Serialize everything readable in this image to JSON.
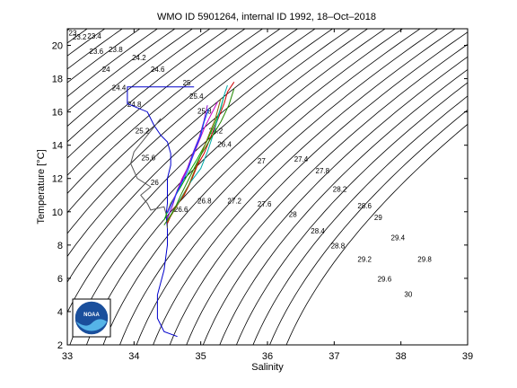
{
  "chart_data": {
    "type": "line",
    "title": "WMO ID 5901264, internal ID 1992, 18–Oct–2018",
    "xlabel": "Salinity",
    "ylabel": "Temperature [°C]",
    "xlim": [
      33,
      39
    ],
    "ylim": [
      2,
      21
    ],
    "xticks": [
      33,
      34,
      35,
      36,
      37,
      38,
      39
    ],
    "yticks": [
      2,
      4,
      6,
      8,
      10,
      12,
      14,
      16,
      18,
      20
    ],
    "grid": false,
    "logo_text": "NOAA",
    "density_labels": [
      {
        "text": "23",
        "s": 33.02,
        "t": 20.6
      },
      {
        "text": "23.2",
        "s": 33.08,
        "t": 20.35
      },
      {
        "text": "23.4",
        "s": 33.3,
        "t": 20.4
      },
      {
        "text": "23.6",
        "s": 33.33,
        "t": 19.5
      },
      {
        "text": "23.8",
        "s": 33.62,
        "t": 19.6
      },
      {
        "text": "24",
        "s": 33.52,
        "t": 18.4
      },
      {
        "text": "24.2",
        "s": 33.97,
        "t": 19.1
      },
      {
        "text": "24.4",
        "s": 33.67,
        "t": 17.3
      },
      {
        "text": "24.6",
        "s": 34.25,
        "t": 18.4
      },
      {
        "text": "24.8",
        "s": 33.9,
        "t": 16.3
      },
      {
        "text": "25",
        "s": 34.73,
        "t": 17.6
      },
      {
        "text": "25.2",
        "s": 34.02,
        "t": 14.7
      },
      {
        "text": "25.4",
        "s": 34.83,
        "t": 16.8
      },
      {
        "text": "25.6",
        "s": 34.11,
        "t": 13.1
      },
      {
        "text": "25.8",
        "s": 34.95,
        "t": 15.9
      },
      {
        "text": "26",
        "s": 34.25,
        "t": 11.6
      },
      {
        "text": "26.2",
        "s": 35.12,
        "t": 14.7
      },
      {
        "text": "26.4",
        "s": 35.25,
        "t": 13.9
      },
      {
        "text": "26.6",
        "s": 34.6,
        "t": 10.0
      },
      {
        "text": "26.8",
        "s": 34.95,
        "t": 10.5
      },
      {
        "text": "27",
        "s": 35.85,
        "t": 12.9
      },
      {
        "text": "27.2",
        "s": 35.4,
        "t": 10.5
      },
      {
        "text": "27.4",
        "s": 36.4,
        "t": 13.0
      },
      {
        "text": "27.6",
        "s": 35.85,
        "t": 10.3
      },
      {
        "text": "27.8",
        "s": 36.72,
        "t": 12.3
      },
      {
        "text": "28",
        "s": 36.32,
        "t": 9.7
      },
      {
        "text": "28.2",
        "s": 36.98,
        "t": 11.2
      },
      {
        "text": "28.4",
        "s": 36.65,
        "t": 8.7
      },
      {
        "text": "28.6",
        "s": 37.35,
        "t": 10.2
      },
      {
        "text": "28.8",
        "s": 36.95,
        "t": 7.8
      },
      {
        "text": "29",
        "s": 37.6,
        "t": 9.5
      },
      {
        "text": "29.2",
        "s": 37.35,
        "t": 7.0
      },
      {
        "text": "29.4",
        "s": 37.85,
        "t": 8.3
      },
      {
        "text": "29.6",
        "s": 37.65,
        "t": 5.8
      },
      {
        "text": "29.8",
        "s": 38.25,
        "t": 7.0
      },
      {
        "text": "30",
        "s": 38.05,
        "t": 4.9
      }
    ],
    "series": [
      {
        "color": "#0000cc",
        "points": [
          [
            34.9,
            17.5
          ],
          [
            34.5,
            17.5
          ],
          [
            34.2,
            17.5
          ],
          [
            33.9,
            17.5
          ],
          [
            33.9,
            16.5
          ],
          [
            34.2,
            16.0
          ],
          [
            34.3,
            15.2
          ],
          [
            34.4,
            14.6
          ],
          [
            34.5,
            14.2
          ],
          [
            34.55,
            13.5
          ],
          [
            34.55,
            12.8
          ],
          [
            34.5,
            12.0
          ],
          [
            34.5,
            11.2
          ],
          [
            34.5,
            10.5
          ],
          [
            34.48,
            9.8
          ],
          [
            34.5,
            9.0
          ],
          [
            34.5,
            8.0
          ],
          [
            34.45,
            6.5
          ],
          [
            34.35,
            5.0
          ],
          [
            34.35,
            3.6
          ],
          [
            34.45,
            2.8
          ],
          [
            34.65,
            2.5
          ]
        ]
      },
      {
        "color": "#555555",
        "points": [
          [
            34.4,
            15.6
          ],
          [
            34.2,
            14.6
          ],
          [
            34.0,
            13.6
          ],
          [
            33.95,
            12.9
          ],
          [
            34.05,
            12.0
          ],
          [
            34.25,
            11.5
          ],
          [
            34.1,
            11.0
          ],
          [
            34.2,
            10.5
          ],
          [
            34.25,
            10.1
          ],
          [
            34.45,
            10.3
          ],
          [
            34.5,
            9.6
          ],
          [
            34.5,
            9.0
          ]
        ]
      },
      {
        "color": "#cc0000",
        "points": [
          [
            34.5,
            9.3
          ],
          [
            34.6,
            10.2
          ],
          [
            34.75,
            11.0
          ],
          [
            34.85,
            11.8
          ],
          [
            34.95,
            12.8
          ],
          [
            35.05,
            13.5
          ],
          [
            35.15,
            14.5
          ],
          [
            35.25,
            15.5
          ],
          [
            35.35,
            16.5
          ],
          [
            35.4,
            17.2
          ],
          [
            35.5,
            17.8
          ]
        ]
      },
      {
        "color": "#00aa00",
        "points": [
          [
            34.45,
            9.5
          ],
          [
            34.55,
            10.5
          ],
          [
            34.7,
            11.5
          ],
          [
            34.8,
            12.2
          ],
          [
            34.95,
            13.2
          ],
          [
            35.1,
            14.3
          ],
          [
            35.2,
            15.2
          ],
          [
            35.3,
            16.2
          ],
          [
            35.35,
            17.0
          ]
        ]
      },
      {
        "color": "#cc00cc",
        "points": [
          [
            34.5,
            10.0
          ],
          [
            34.62,
            11.0
          ],
          [
            34.72,
            12.0
          ],
          [
            34.85,
            13.0
          ],
          [
            34.95,
            14.0
          ],
          [
            35.05,
            15.0
          ],
          [
            35.15,
            15.8
          ],
          [
            35.25,
            16.6
          ]
        ]
      },
      {
        "color": "#00aaaa",
        "points": [
          [
            34.55,
            9.8
          ],
          [
            34.7,
            10.8
          ],
          [
            34.85,
            11.8
          ],
          [
            35.0,
            12.6
          ],
          [
            35.1,
            13.6
          ],
          [
            35.2,
            14.8
          ],
          [
            35.28,
            16.0
          ],
          [
            35.35,
            17.0
          ],
          [
            35.4,
            17.6
          ]
        ]
      },
      {
        "color": "#8800cc",
        "points": [
          [
            34.5,
            9.6
          ],
          [
            34.58,
            10.4
          ],
          [
            34.65,
            11.3
          ],
          [
            34.78,
            12.4
          ],
          [
            34.88,
            13.5
          ],
          [
            34.98,
            14.5
          ],
          [
            35.05,
            15.5
          ],
          [
            35.1,
            16.4
          ]
        ]
      },
      {
        "color": "#886600",
        "points": [
          [
            34.5,
            9.4
          ],
          [
            34.68,
            10.6
          ],
          [
            34.82,
            11.6
          ],
          [
            34.92,
            12.6
          ],
          [
            35.02,
            13.6
          ],
          [
            35.12,
            14.6
          ],
          [
            35.22,
            15.6
          ],
          [
            35.3,
            16.8
          ]
        ]
      },
      {
        "color": "#228800",
        "points": [
          [
            34.45,
            9.2
          ],
          [
            34.6,
            10.1
          ],
          [
            34.7,
            11.0
          ],
          [
            34.85,
            12.2
          ],
          [
            35.0,
            13.4
          ],
          [
            35.15,
            14.4
          ],
          [
            35.3,
            15.4
          ],
          [
            35.42,
            16.4
          ],
          [
            35.5,
            17.4
          ]
        ]
      },
      {
        "color": "#0055ff",
        "points": [
          [
            34.5,
            9.9
          ],
          [
            34.65,
            11.2
          ],
          [
            34.8,
            12.4
          ],
          [
            34.9,
            13.6
          ],
          [
            35.0,
            14.6
          ],
          [
            35.05,
            15.4
          ],
          [
            35.12,
            16.2
          ]
        ]
      }
    ]
  }
}
